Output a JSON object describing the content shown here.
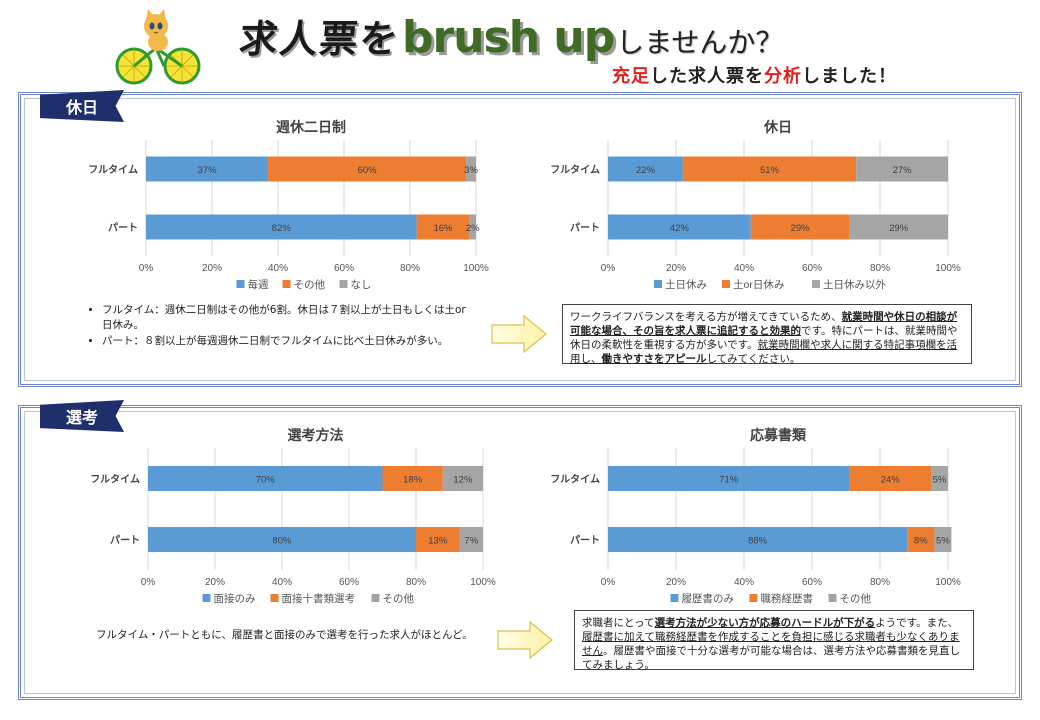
{
  "header": {
    "title_ja_1": "求人票を",
    "title_en": "brush up",
    "title_ja_2": "しませんか？",
    "subtitle_red_1": "充足",
    "subtitle_mid_1": "した求人票を",
    "subtitle_red_2": "分析",
    "subtitle_mid_2": "しました！"
  },
  "sections": {
    "holiday_label": "休日",
    "selection_label": "選考"
  },
  "colors": {
    "blue": "#5b9bd5",
    "orange": "#ed7d31",
    "gray": "#a5a5a5",
    "navy": "#1e2f6b"
  },
  "chart_data": [
    {
      "id": "weekly",
      "type": "bar",
      "orientation": "horizontal-stacked-100",
      "title": "週休二日制",
      "categories": [
        "フルタイム",
        "パート"
      ],
      "series": [
        {
          "name": "毎週",
          "values": [
            37,
            82
          ]
        },
        {
          "name": "その他",
          "values": [
            60,
            16
          ]
        },
        {
          "name": "なし",
          "values": [
            3,
            2
          ]
        }
      ],
      "xticks": [
        "0%",
        "20%",
        "40%",
        "60%",
        "80%",
        "100%"
      ],
      "xlim": [
        0,
        100
      ],
      "legend": "bottom"
    },
    {
      "id": "holiday",
      "type": "bar",
      "orientation": "horizontal-stacked-100",
      "title": "休日",
      "categories": [
        "フルタイム",
        "パート"
      ],
      "series": [
        {
          "name": "土日休み",
          "values": [
            22,
            42
          ]
        },
        {
          "name": "土or日休み",
          "values": [
            51,
            29
          ]
        },
        {
          "name": "土日休み以外",
          "values": [
            27,
            29
          ]
        }
      ],
      "xticks": [
        "0%",
        "20%",
        "40%",
        "60%",
        "80%",
        "100%"
      ],
      "xlim": [
        0,
        100
      ],
      "legend": "bottom"
    },
    {
      "id": "method",
      "type": "bar",
      "orientation": "horizontal-stacked-100",
      "title": "選考方法",
      "categories": [
        "フルタイム",
        "パート"
      ],
      "series": [
        {
          "name": "面接のみ",
          "values": [
            70,
            80
          ]
        },
        {
          "name": "面接十書類選考",
          "values": [
            18,
            13
          ]
        },
        {
          "name": "その他",
          "values": [
            12,
            7
          ]
        }
      ],
      "xticks": [
        "0%",
        "20%",
        "40%",
        "60%",
        "80%",
        "100%"
      ],
      "xlim": [
        0,
        100
      ],
      "legend": "bottom"
    },
    {
      "id": "documents",
      "type": "bar",
      "orientation": "horizontal-stacked-100",
      "title": "応募書類",
      "categories": [
        "フルタイム",
        "パート"
      ],
      "series": [
        {
          "name": "履歴書のみ",
          "values": [
            71,
            88
          ]
        },
        {
          "name": "職務経歴書",
          "values": [
            24,
            8
          ]
        },
        {
          "name": "その他",
          "values": [
            5,
            5
          ]
        }
      ],
      "xticks": [
        "0%",
        "20%",
        "40%",
        "60%",
        "80%",
        "100%"
      ],
      "xlim": [
        0,
        100
      ],
      "legend": "bottom"
    }
  ],
  "notes": {
    "holiday_bullets": [
      "フルタイム：週休二日制はその他が6割。休日は７割以上が土日もしくは土or日休み。",
      "パート：８割以上が毎週週休二日制でフルタイムに比べ土日休みが多い。"
    ],
    "selection_text": "フルタイム・パートともに、履歴書と面接のみで選考を行った求人がほとんど。"
  },
  "advice": {
    "holiday": {
      "p1": "ワークライフバランスを考える方が増えてきているため、",
      "b1": "就業時間や休日の相談が可能な場合、その旨を求人票に追記すると効果的",
      "p2": "です。特にパートは、就業時間や休日の柔軟性を重視する方が多いです。",
      "u1": "就業時間欄や求人に関する特記事項欄を活用し、",
      "b2": "働きやすさをアピール",
      "p3": "してみてください。"
    },
    "selection": {
      "p1": "求職者にとって",
      "b1": "選考方法が少ない方が応募のハードルが下がる",
      "p2": "ようです。また、",
      "u1": "履歴書に加えて職務経歴書を作成することを負担に感じる求職者も少なくありません",
      "p3": "。履歴書や面接で十分な選考が可能な場合は、選考方法や応募書類を見直してみましょう。"
    }
  }
}
